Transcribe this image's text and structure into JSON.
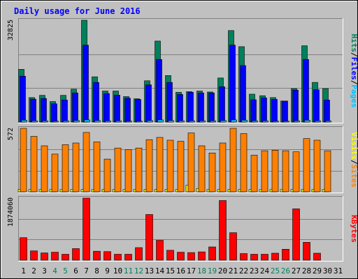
{
  "chart_data": {
    "type": "bar",
    "title": "Daily usage for June 2016",
    "categories": [
      "1",
      "2",
      "3",
      "4",
      "5",
      "6",
      "7",
      "8",
      "9",
      "10",
      "11",
      "12",
      "13",
      "14",
      "15",
      "16",
      "17",
      "18",
      "19",
      "20",
      "21",
      "22",
      "23",
      "24",
      "25",
      "26",
      "27",
      "28",
      "29",
      "30",
      "31"
    ],
    "weekend_days": [
      4,
      5,
      11,
      12,
      18,
      19,
      25,
      26
    ],
    "panels": [
      {
        "id": "hits",
        "ymax_label": "32825",
        "ymax": 32825,
        "side_labels": [
          {
            "text": "Hits",
            "color": "#00805c"
          },
          {
            "text": "/",
            "color": "#000000"
          },
          {
            "text": "Files",
            "color": "#0000ff"
          },
          {
            "text": "/",
            "color": "#000000"
          },
          {
            "text": "Pages",
            "color": "#00c0ff"
          }
        ],
        "series": [
          {
            "name": "Hits",
            "color": "#00805c",
            "values": [
              17000,
              7900,
              8600,
              6600,
              8600,
              10600,
              32825,
              14600,
              10000,
              10000,
              8200,
              7500,
              13300,
              26100,
              15000,
              9600,
              9800,
              10000,
              9700,
              14200,
              29500,
              24300,
              9000,
              8500,
              7900,
              6800,
              10800,
              24600,
              12800,
              10800,
              0
            ]
          },
          {
            "name": "Files",
            "color": "#0000ff",
            "values": [
              14800,
              7400,
              7600,
              5900,
              7100,
              9400,
              24800,
              12800,
              9200,
              8700,
              7700,
              7300,
              12000,
              20200,
              12800,
              8900,
              9600,
              9400,
              9400,
              11400,
              24800,
              18200,
              7200,
              7800,
              7300,
              6800,
              10300,
              20200,
              10400,
              7100,
              0
            ]
          },
          {
            "name": "Pages",
            "color": "#00c0ff",
            "values": [
              600,
              400,
              400,
              300,
              400,
              500,
              700,
              500,
              400,
              400,
              300,
              300,
              500,
              700,
              500,
              400,
              400,
              400,
              400,
              500,
              700,
              600,
              400,
              400,
              300,
              300,
              400,
              600,
              400,
              400,
              0
            ]
          }
        ]
      },
      {
        "id": "visits",
        "ymax_label": "572",
        "ymax": 572,
        "side_labels": [
          {
            "text": "Visits",
            "color": "#ffff00"
          },
          {
            "text": "/",
            "color": "#000000"
          },
          {
            "text": "Sites",
            "color": "#ff8000"
          }
        ],
        "series": [
          {
            "name": "Visits",
            "color": "#ffff00",
            "values": [
              20,
              20,
              20,
              20,
              20,
              20,
              20,
              20,
              20,
              20,
              20,
              20,
              20,
              20,
              20,
              20,
              60,
              30,
              20,
              20,
              20,
              20,
              20,
              20,
              20,
              20,
              20,
              20,
              20,
              20,
              0
            ]
          },
          {
            "name": "Sites",
            "color": "#ff8000",
            "values": [
              572,
              500,
              415,
              340,
              425,
              440,
              535,
              450,
              295,
              395,
              380,
              395,
              470,
              490,
              465,
              455,
              530,
              415,
              350,
              440,
              572,
              525,
              330,
              370,
              375,
              370,
              360,
              480,
              465,
              370,
              0
            ]
          }
        ]
      },
      {
        "id": "kbytes",
        "ymax_label": "1874060",
        "ymax": 1874060,
        "side_labels": [
          {
            "text": "KBytes",
            "color": "#ff0000"
          }
        ],
        "series": [
          {
            "name": "KBytes",
            "color": "#ff0000",
            "values": [
              680000,
              280000,
              220000,
              240000,
              180000,
              350000,
              1874060,
              270000,
              260000,
              180000,
              180000,
              380000,
              1380000,
              600000,
              300000,
              240000,
              230000,
              250000,
              400000,
              1800000,
              830000,
              200000,
              180000,
              180000,
              210000,
              330000,
              1550000,
              540000,
              210000,
              0,
              0
            ]
          }
        ]
      }
    ]
  }
}
